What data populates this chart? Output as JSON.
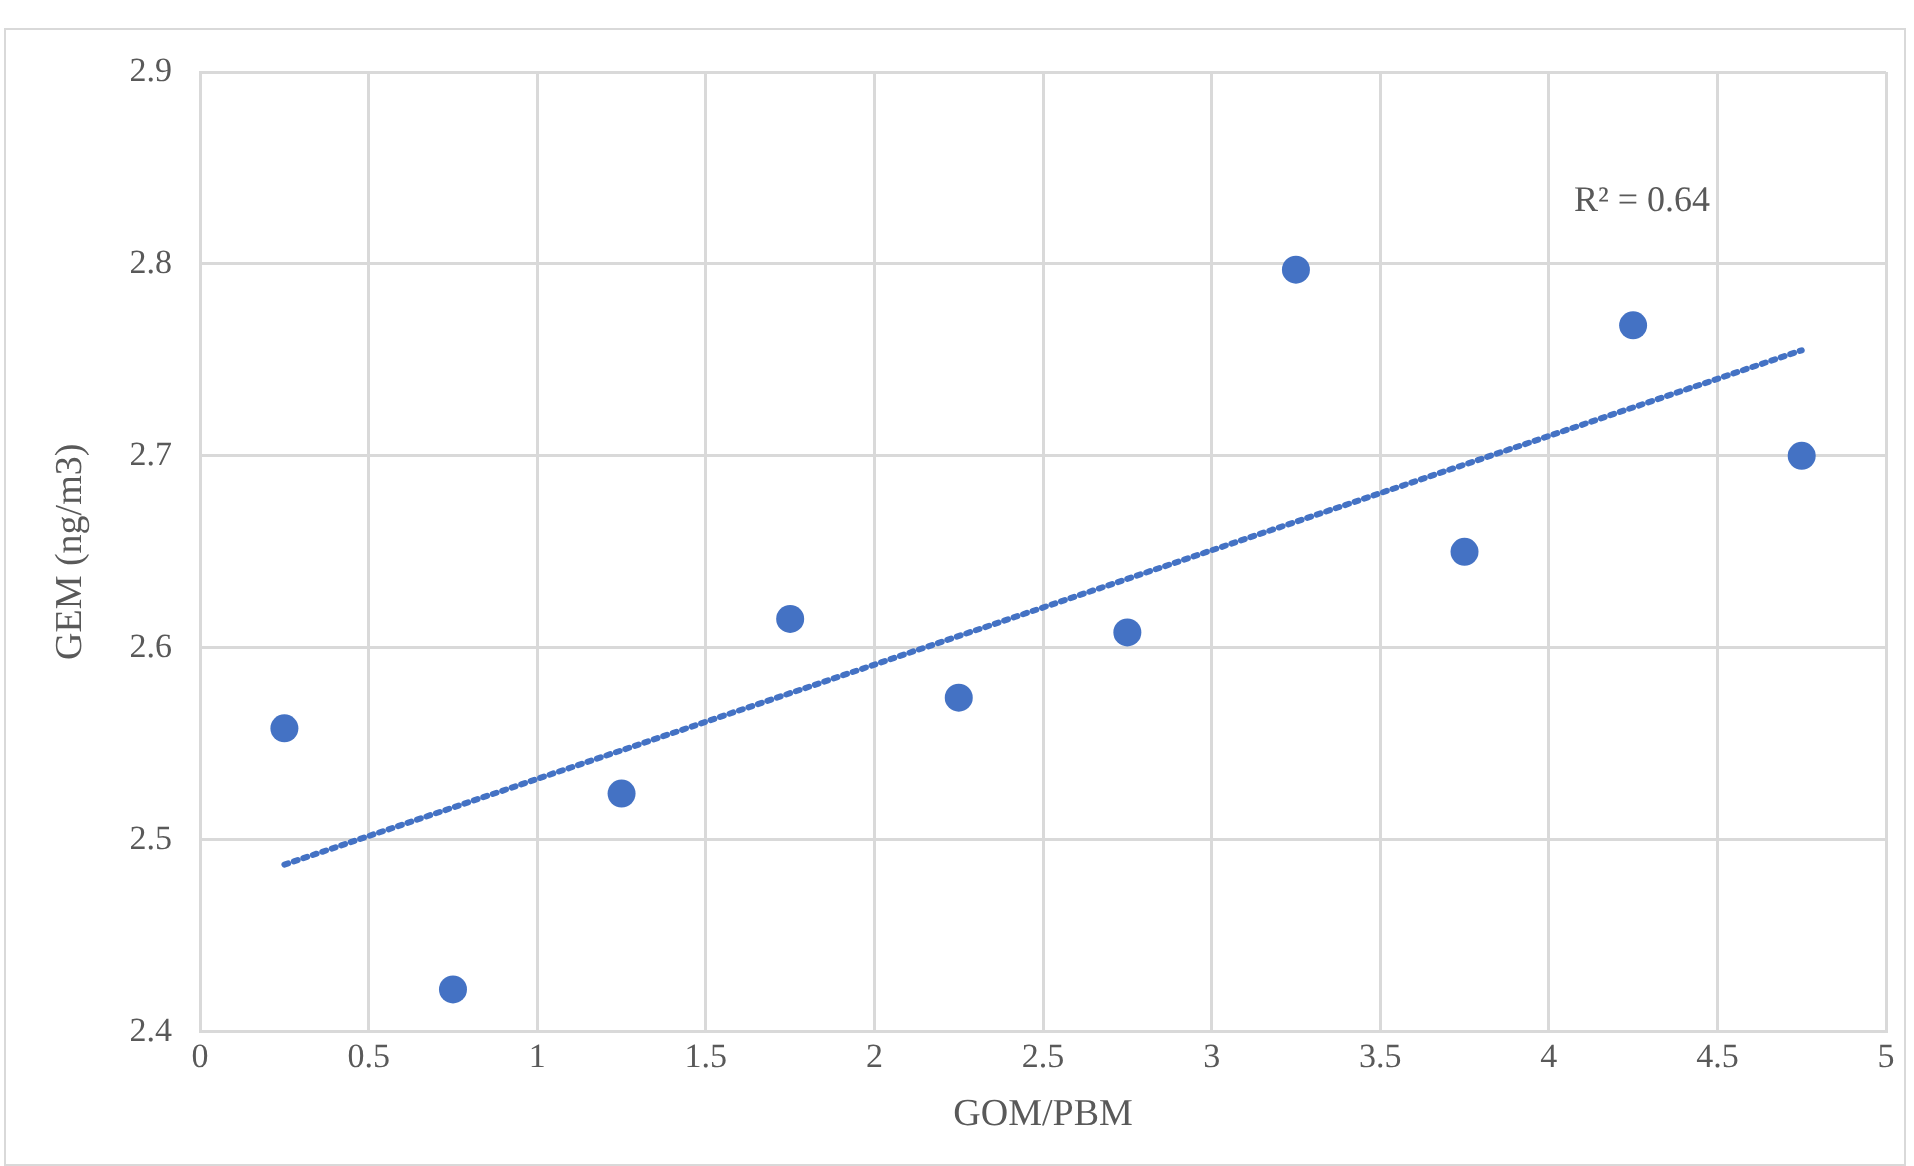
{
  "chart_data": {
    "type": "scatter",
    "xlabel": "GOM/PBM",
    "ylabel": "GEM (ng/m3)",
    "x": [
      0.25,
      0.75,
      1.25,
      1.75,
      2.25,
      2.75,
      3.25,
      3.75,
      4.25,
      4.75
    ],
    "series": [
      {
        "type": "scatter",
        "color": "#4472c4",
        "values": [
          2.558,
          2.422,
          2.524,
          2.615,
          2.574,
          2.608,
          2.797,
          2.65,
          2.768,
          2.7
        ],
        "marker": "circle"
      },
      {
        "type": "line",
        "color": "#4472c4",
        "x": [
          0.25,
          4.75
        ],
        "values": [
          2.487,
          2.755
        ],
        "line_style": "dotted",
        "marker": "none"
      }
    ],
    "xlim": [
      0,
      5
    ],
    "xticks": [
      0,
      0.5,
      1,
      1.5,
      2,
      2.5,
      3,
      3.5,
      4,
      4.5,
      5
    ],
    "ylim": [
      2.4,
      2.9
    ],
    "yticks": [
      2.4,
      2.5,
      2.6,
      2.7,
      2.8,
      2.9
    ],
    "grid": true,
    "legend": false,
    "annotations": [
      "R² = 0.64"
    ]
  }
}
